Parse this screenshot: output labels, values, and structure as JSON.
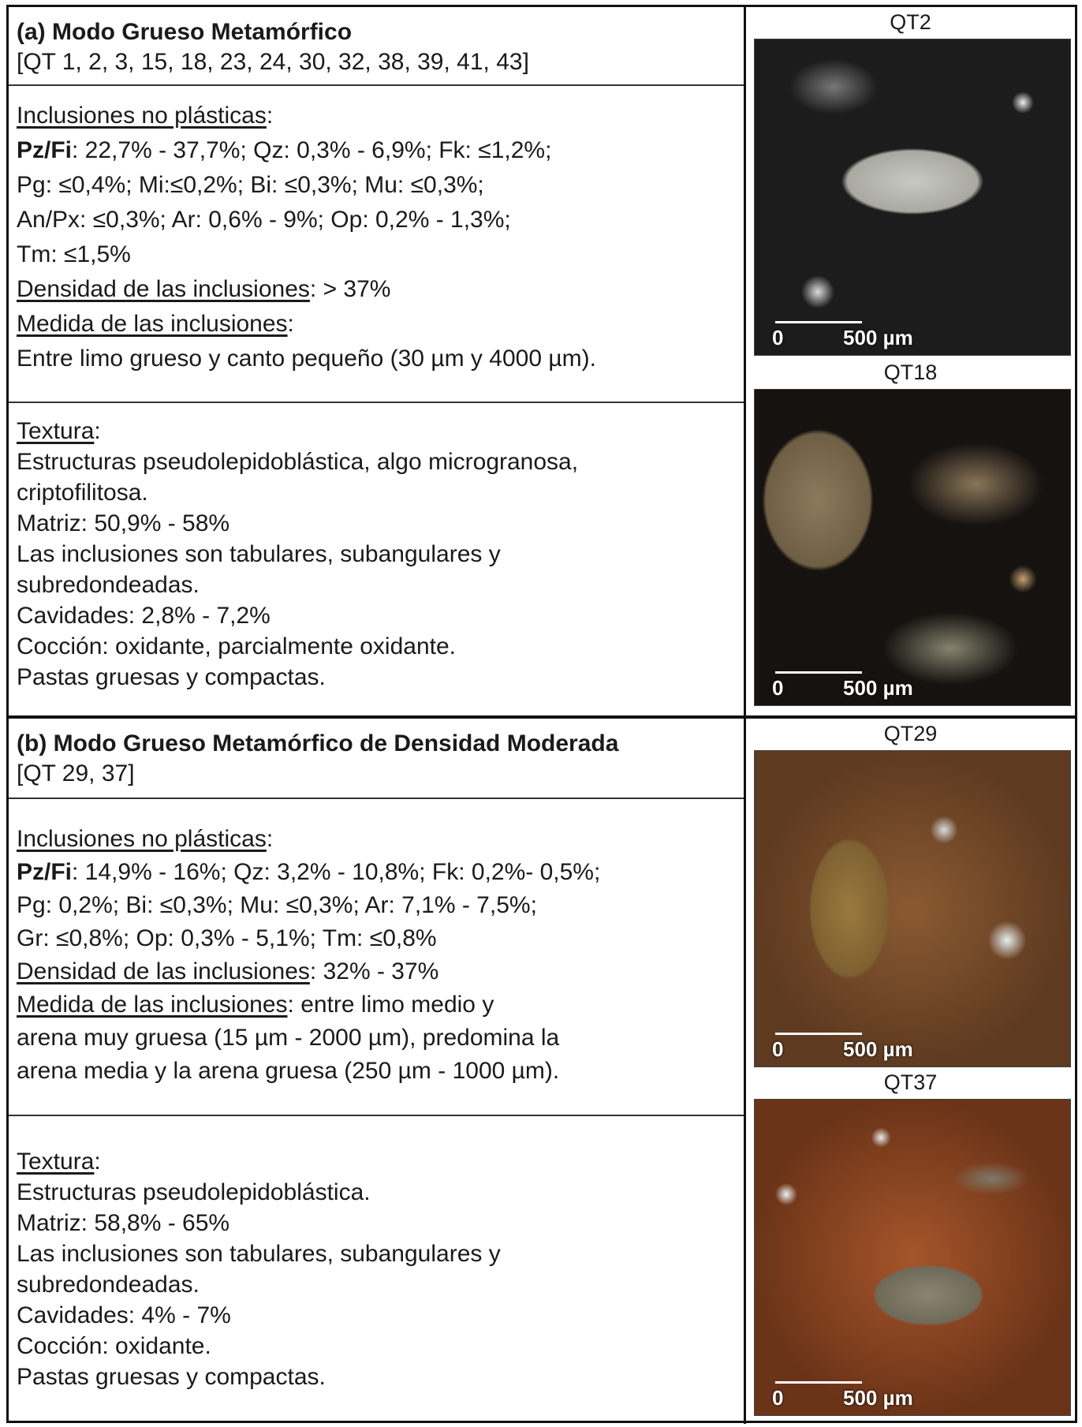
{
  "sections": [
    {
      "title": "(a) Modo Grueso Metamórfico",
      "samples": "[QT 1, 2, 3, 15, 18, 23, 24, 30, 32, 38, 39, 41, 43]",
      "inclusions": [
        [
          {
            "u": "Inclusiones no plásticas"
          },
          {
            "t": ":"
          }
        ],
        [
          {
            "b": "Pz/Fi"
          },
          {
            "t": ": 22,7% - 37,7%; Qz: 0,3% - 6,9%; Fk: ≤1,2%;"
          }
        ],
        [
          {
            "t": "Pg: ≤0,4%; Mi:≤0,2%; Bi: ≤0,3%; Mu: ≤0,3%;"
          }
        ],
        [
          {
            "t": "An/Px: ≤0,3%; Ar: 0,6% - 9%; Op: 0,2% - 1,3%;"
          }
        ],
        [
          {
            "t": "Tm: ≤1,5%"
          }
        ],
        [
          {
            "u": "Densidad de las inclusiones"
          },
          {
            "t": ": > 37%"
          }
        ],
        [
          {
            "u": "Medida de las inclusiones"
          },
          {
            "t": ":"
          }
        ],
        [
          {
            "t": "Entre limo grueso y canto pequeño (30 µm y 4000 µm)."
          }
        ]
      ],
      "texture": [
        [
          {
            "u": "Textura"
          },
          {
            "t": ":"
          }
        ],
        [
          {
            "t": "Estructuras pseudolepidoblástica, algo microgranosa,"
          }
        ],
        [
          {
            "t": "criptofilitosa."
          }
        ],
        [
          {
            "t": "Matriz: 50,9% - 58%"
          }
        ],
        [
          {
            "t": "Las inclusiones son tabulares, subangulares y"
          }
        ],
        [
          {
            "t": "subredondeadas."
          }
        ],
        [
          {
            "t": "Cavidades: 2,8% - 7,2%"
          }
        ],
        [
          {
            "t": "Cocción: oxidante, parcialmente oxidante."
          }
        ],
        [
          {
            "t": "Pastas gruesas y compactas."
          }
        ]
      ],
      "photos": [
        {
          "caption": "QT2",
          "scale_start": "0",
          "scale_label": "500 µm"
        },
        {
          "caption": "QT18",
          "scale_start": "0",
          "scale_label": "500 µm"
        }
      ]
    },
    {
      "title": "(b) Modo Grueso Metamórfico de Densidad Moderada",
      "samples": "[QT 29, 37]",
      "inclusions": [
        [
          {
            "u": "Inclusiones no plásticas"
          },
          {
            "t": ":"
          }
        ],
        [
          {
            "b": "Pz/Fi"
          },
          {
            "t": ": 14,9% - 16%; Qz: 3,2% - 10,8%; Fk: 0,2%- 0,5%;"
          }
        ],
        [
          {
            "t": "Pg: 0,2%; Bi: ≤0,3%; Mu: ≤0,3%; Ar: 7,1% - 7,5%;"
          }
        ],
        [
          {
            "t": "Gr: ≤0,8%; Op: 0,3% - 5,1%; Tm: ≤0,8%"
          }
        ],
        [
          {
            "u": "Densidad de las inclusiones"
          },
          {
            "t": ": 32% - 37%"
          }
        ],
        [
          {
            "u": "Medida de las inclusiones"
          },
          {
            "t": ": entre limo medio y"
          }
        ],
        [
          {
            "t": "arena muy gruesa (15 µm - 2000 µm), predomina la"
          }
        ],
        [
          {
            "t": "arena media y la arena gruesa (250 µm - 1000 µm)."
          }
        ]
      ],
      "texture": [
        [
          {
            "u": "Textura"
          },
          {
            "t": ":"
          }
        ],
        [
          {
            "t": "Estructuras pseudolepidoblástica."
          }
        ],
        [
          {
            "t": "Matriz: 58,8% - 65%"
          }
        ],
        [
          {
            "t": "Las inclusiones son tabulares, subangulares y"
          }
        ],
        [
          {
            "t": "subredondeadas."
          }
        ],
        [
          {
            "t": "Cavidades: 4% - 7%"
          }
        ],
        [
          {
            "t": "Cocción: oxidante."
          }
        ],
        [
          {
            "t": "Pastas gruesas y compactas."
          }
        ]
      ],
      "photos": [
        {
          "caption": "QT29",
          "scale_start": "0",
          "scale_label": "500 µm"
        },
        {
          "caption": "QT37",
          "scale_start": "0",
          "scale_label": "500 µm"
        }
      ]
    }
  ]
}
